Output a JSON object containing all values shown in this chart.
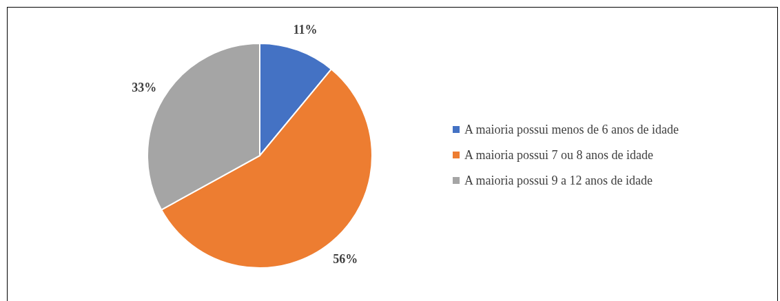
{
  "chart_data": {
    "type": "pie",
    "categories": [
      "A maioria possui menos de 6 anos de idade",
      "A maioria possui 7 ou 8 anos de idade",
      "A maioria possui 9 a 12 anos de idade"
    ],
    "values": [
      11,
      56,
      33
    ],
    "colors": [
      "#4472c4",
      "#ed7d31",
      "#a5a5a5"
    ],
    "value_labels": [
      "11%",
      "56%",
      "33%"
    ],
    "legend": "right"
  }
}
